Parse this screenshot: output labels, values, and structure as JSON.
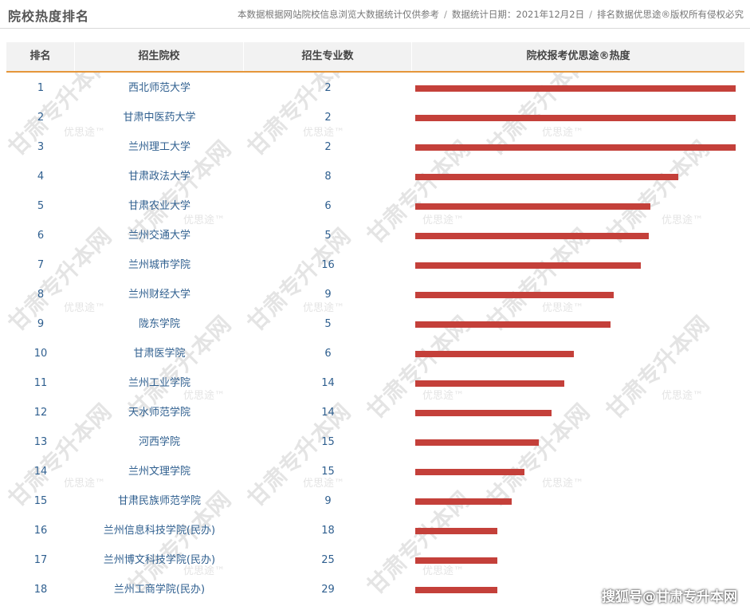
{
  "header": {
    "title": "院校热度排名",
    "notice_parts": [
      "本数据根据网站院校信息浏览大数据统计仅供参考",
      "数据统计日期：2021年12月2日",
      "排名数据优思途®版权所有侵权必究"
    ],
    "separator": "/"
  },
  "table": {
    "columns": [
      "排名",
      "招生院校",
      "招生专业数",
      "院校报考优思途®热度"
    ]
  },
  "watermarks": {
    "big": "甘肃专升本网",
    "small": "优思途™"
  },
  "footer": {
    "source": "搜狐号@甘肃专升本网"
  },
  "colors": {
    "bar": "#c4403a",
    "header_accent": "#e5963a",
    "text": "#2f5f8f"
  },
  "chart_data": {
    "type": "bar",
    "orientation": "horizontal",
    "title": "院校热度排名",
    "categories": [
      "西北师范大学",
      "甘肃中医药大学",
      "兰州理工大学",
      "甘肃政法大学",
      "甘肃农业大学",
      "兰州交通大学",
      "兰州城市学院",
      "兰州财经大学",
      "陇东学院",
      "甘肃医学院",
      "兰州工业学院",
      "天水师范学院",
      "河西学院",
      "兰州文理学院",
      "甘肃民族师范学院",
      "兰州信息科技学院(民办)",
      "兰州博文科技学院(民办)",
      "兰州工商学院(民办)"
    ],
    "ranks": [
      "1",
      "2",
      "3",
      "4",
      "5",
      "6",
      "7",
      "8",
      "9",
      "10",
      "11",
      "12",
      "13",
      "14",
      "15",
      "16",
      "17",
      "18"
    ],
    "majors": [
      "2",
      "2",
      "2",
      "8",
      "6",
      "5",
      "16",
      "9",
      "5",
      "6",
      "14",
      "14",
      "15",
      "15",
      "9",
      "18",
      "25",
      "29"
    ],
    "series": [
      {
        "values": [
          100,
          100,
          100,
          82,
          73.5,
          73,
          70.5,
          62,
          61,
          49.5,
          46.5,
          42.5,
          38.5,
          34,
          30,
          25.5,
          25.5,
          25.5
        ]
      }
    ],
    "xlim": [
      0,
      100
    ],
    "grid": false,
    "legend": "none"
  }
}
